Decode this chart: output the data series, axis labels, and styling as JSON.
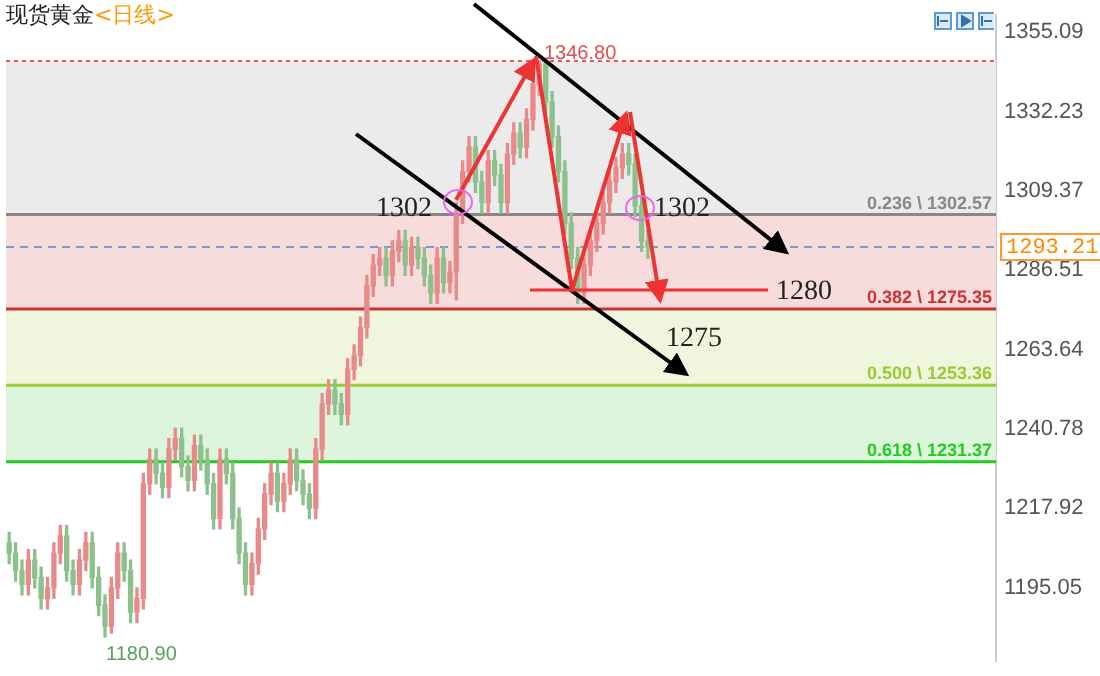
{
  "chart_data": {
    "type": "candlestick",
    "title": "现货黄金",
    "subtitle": "<日线>",
    "categories": [
      null,
      null,
      null,
      null,
      null,
      null,
      null,
      null,
      null,
      null,
      null,
      null,
      null,
      null,
      null,
      null,
      null,
      null,
      null,
      null,
      null,
      null,
      null,
      null,
      null,
      null,
      null,
      null,
      null,
      null,
      null,
      null,
      null,
      null,
      null,
      null,
      null,
      null,
      null,
      null,
      null,
      null,
      null,
      null,
      null,
      null,
      null,
      null,
      null,
      null,
      null,
      null,
      null,
      null,
      null,
      null,
      null,
      null,
      null,
      null,
      null,
      null,
      null,
      null,
      null,
      null,
      null,
      null,
      null,
      null,
      null,
      null,
      null,
      null,
      null,
      null,
      null,
      null,
      null,
      null,
      null,
      null,
      null,
      null,
      null,
      null,
      null,
      null,
      null,
      null,
      null,
      null,
      null,
      null,
      null,
      null,
      null,
      null,
      null,
      null,
      null,
      null,
      null,
      null,
      null,
      null,
      null,
      null,
      null,
      null,
      null,
      null,
      null,
      null,
      null,
      null,
      null,
      null,
      null,
      null,
      null,
      null,
      null,
      null,
      null,
      null,
      null,
      null,
      null,
      null,
      null,
      null,
      null,
      null,
      null,
      null,
      null,
      null,
      null,
      null,
      null,
      null,
      null,
      null,
      null,
      null,
      null,
      null,
      null,
      null,
      null,
      null,
      null,
      null,
      null
    ],
    "ohlc": [
      [
        1208,
        1211,
        1202,
        1205
      ],
      [
        1205,
        1208,
        1197,
        1200
      ],
      [
        1200,
        1203,
        1193,
        1196
      ],
      [
        1196,
        1206,
        1193,
        1203
      ],
      [
        1203,
        1206,
        1195,
        1198
      ],
      [
        1198,
        1201,
        1189,
        1192
      ],
      [
        1192,
        1198,
        1189,
        1195
      ],
      [
        1195,
        1208,
        1192,
        1205
      ],
      [
        1205,
        1213,
        1202,
        1210
      ],
      [
        1210,
        1213,
        1197,
        1200
      ],
      [
        1200,
        1203,
        1193,
        1196
      ],
      [
        1196,
        1206,
        1193,
        1203
      ],
      [
        1203,
        1211,
        1200,
        1208
      ],
      [
        1208,
        1211,
        1195,
        1198
      ],
      [
        1198,
        1201,
        1187,
        1190
      ],
      [
        1190,
        1193,
        1180.9,
        1184
      ],
      [
        1184,
        1198,
        1182,
        1195
      ],
      [
        1195,
        1208,
        1192,
        1205
      ],
      [
        1205,
        1208,
        1197,
        1200
      ],
      [
        1200,
        1203,
        1185,
        1188
      ],
      [
        1188,
        1195,
        1185,
        1192
      ],
      [
        1192,
        1228,
        1189,
        1225
      ],
      [
        1225,
        1235,
        1222,
        1232
      ],
      [
        1232,
        1235,
        1225,
        1228
      ],
      [
        1228,
        1231,
        1221,
        1224
      ],
      [
        1224,
        1238,
        1221,
        1235
      ],
      [
        1235,
        1241,
        1232,
        1238
      ],
      [
        1238,
        1241,
        1227,
        1230
      ],
      [
        1230,
        1233,
        1223,
        1226
      ],
      [
        1226,
        1239,
        1223,
        1236
      ],
      [
        1236,
        1239,
        1229,
        1232
      ],
      [
        1232,
        1235,
        1222,
        1225
      ],
      [
        1225,
        1228,
        1212,
        1215
      ],
      [
        1215,
        1235,
        1212,
        1232
      ],
      [
        1232,
        1235,
        1225,
        1228
      ],
      [
        1228,
        1231,
        1212,
        1215
      ],
      [
        1215,
        1218,
        1202,
        1205
      ],
      [
        1205,
        1208,
        1193,
        1196
      ],
      [
        1196,
        1205,
        1193,
        1202
      ],
      [
        1202,
        1215,
        1199,
        1212
      ],
      [
        1212,
        1225,
        1209,
        1222
      ],
      [
        1222,
        1231,
        1219,
        1228
      ],
      [
        1228,
        1231,
        1217,
        1220
      ],
      [
        1220,
        1228,
        1217,
        1225
      ],
      [
        1225,
        1235,
        1222,
        1232
      ],
      [
        1232,
        1235,
        1223,
        1226
      ],
      [
        1226,
        1229,
        1219,
        1222
      ],
      [
        1222,
        1225,
        1215,
        1218
      ],
      [
        1218,
        1238,
        1215,
        1235
      ],
      [
        1235,
        1251,
        1232,
        1248
      ],
      [
        1248,
        1255,
        1245,
        1252
      ],
      [
        1252,
        1255,
        1245,
        1248
      ],
      [
        1248,
        1251,
        1242,
        1245
      ],
      [
        1245,
        1261,
        1242,
        1258
      ],
      [
        1258,
        1265,
        1255,
        1262
      ],
      [
        1262,
        1273,
        1259,
        1270
      ],
      [
        1270,
        1285,
        1267,
        1282
      ],
      [
        1282,
        1291,
        1279,
        1288
      ],
      [
        1288,
        1293,
        1285,
        1290
      ],
      [
        1290,
        1293,
        1282,
        1285
      ],
      [
        1285,
        1295,
        1282,
        1292
      ],
      [
        1292,
        1298,
        1289,
        1295
      ],
      [
        1295,
        1298,
        1285,
        1288
      ],
      [
        1288,
        1296,
        1285,
        1293
      ],
      [
        1293,
        1296,
        1287,
        1290
      ],
      [
        1290,
        1293,
        1282,
        1285
      ],
      [
        1285,
        1288,
        1277,
        1280
      ],
      [
        1280,
        1293,
        1277,
        1290
      ],
      [
        1290,
        1293,
        1280,
        1283
      ],
      [
        1283,
        1289,
        1280,
        1286
      ],
      [
        1286,
        1306,
        1278,
        1303
      ],
      [
        1303,
        1318,
        1300,
        1315
      ],
      [
        1315,
        1325,
        1312,
        1322
      ],
      [
        1322,
        1325,
        1309,
        1312
      ],
      [
        1312,
        1315,
        1303,
        1306
      ],
      [
        1306,
        1321,
        1303,
        1318
      ],
      [
        1318,
        1321,
        1311,
        1314
      ],
      [
        1314,
        1317,
        1303,
        1306
      ],
      [
        1306,
        1323,
        1303,
        1320
      ],
      [
        1320,
        1329,
        1317,
        1326
      ],
      [
        1326,
        1329,
        1319,
        1322
      ],
      [
        1322,
        1333,
        1319,
        1330
      ],
      [
        1330,
        1343,
        1327,
        1340
      ],
      [
        1340,
        1346.8,
        1337,
        1346
      ],
      [
        1346,
        1346.5,
        1332,
        1335
      ],
      [
        1335,
        1338,
        1322,
        1325
      ],
      [
        1325,
        1328,
        1312,
        1315
      ],
      [
        1315,
        1318,
        1297,
        1300
      ],
      [
        1300,
        1303,
        1287,
        1290
      ],
      [
        1290,
        1293,
        1277,
        1280
      ],
      [
        1280,
        1291,
        1277,
        1288
      ],
      [
        1288,
        1298,
        1285,
        1295
      ],
      [
        1295,
        1303,
        1292,
        1300
      ],
      [
        1300,
        1309,
        1297,
        1306
      ],
      [
        1306,
        1315,
        1303,
        1312
      ],
      [
        1312,
        1319,
        1309,
        1316
      ],
      [
        1316,
        1323,
        1313,
        1320
      ],
      [
        1320,
        1323,
        1314,
        1317
      ],
      [
        1317,
        1320,
        1302,
        1305
      ],
      [
        1305,
        1308,
        1292,
        1295
      ],
      [
        1295,
        1298,
        1290,
        1293.21
      ],
      null,
      null,
      null,
      null,
      null,
      null,
      null,
      null,
      null,
      null,
      null,
      null,
      null,
      null,
      null,
      null,
      null,
      null,
      null,
      null,
      null,
      null,
      null,
      null,
      null,
      null,
      null,
      null,
      null,
      null,
      null,
      null,
      null,
      null,
      null,
      null,
      null,
      null,
      null,
      null,
      null,
      null,
      null,
      null,
      null,
      null,
      null,
      null,
      null,
      null,
      null,
      null,
      null,
      null
    ],
    "colors": [
      "#8cc08c",
      "#8cc08c",
      "#8cc08c",
      "#e88a8a",
      "#8cc08c",
      "#8cc08c",
      "#e88a8a",
      "#e88a8a",
      "#e88a8a",
      "#8cc08c",
      "#8cc08c",
      "#e88a8a",
      "#e88a8a",
      "#8cc08c",
      "#8cc08c",
      "#8cc08c",
      "#e88a8a",
      "#e88a8a",
      "#8cc08c",
      "#8cc08c",
      "#e88a8a",
      "#e88a8a",
      "#e88a8a",
      "#8cc08c",
      "#8cc08c",
      "#e88a8a",
      "#e88a8a",
      "#8cc08c",
      "#8cc08c",
      "#e88a8a",
      "#8cc08c",
      "#8cc08c",
      "#8cc08c",
      "#e88a8a",
      "#8cc08c",
      "#8cc08c",
      "#8cc08c",
      "#8cc08c",
      "#e88a8a",
      "#e88a8a",
      "#e88a8a",
      "#e88a8a",
      "#8cc08c",
      "#e88a8a",
      "#e88a8a",
      "#8cc08c",
      "#8cc08c",
      "#8cc08c",
      "#e88a8a",
      "#e88a8a",
      "#e88a8a",
      "#8cc08c",
      "#8cc08c",
      "#e88a8a",
      "#e88a8a",
      "#e88a8a",
      "#e88a8a",
      "#e88a8a",
      "#e88a8a",
      "#8cc08c",
      "#e88a8a",
      "#e88a8a",
      "#8cc08c",
      "#e88a8a",
      "#8cc08c",
      "#8cc08c",
      "#8cc08c",
      "#e88a8a",
      "#8cc08c",
      "#e88a8a",
      "#e88a8a",
      "#e88a8a",
      "#e88a8a",
      "#8cc08c",
      "#8cc08c",
      "#e88a8a",
      "#8cc08c",
      "#8cc08c",
      "#e88a8a",
      "#e88a8a",
      "#8cc08c",
      "#e88a8a",
      "#e88a8a",
      "#e88a8a",
      "#8cc08c",
      "#8cc08c",
      "#8cc08c",
      "#8cc08c",
      "#8cc08c",
      "#8cc08c",
      "#e88a8a",
      "#e88a8a",
      "#e88a8a",
      "#e88a8a",
      "#e88a8a",
      "#e88a8a",
      "#e88a8a",
      "#8cc08c",
      "#8cc08c",
      "#8cc08c",
      "#8cc08c",
      null,
      null,
      null,
      null,
      null,
      null,
      null,
      null,
      null,
      null,
      null,
      null,
      null,
      null,
      null,
      null,
      null,
      null,
      null,
      null,
      null,
      null,
      null,
      null,
      null,
      null,
      null,
      null,
      null,
      null,
      null,
      null,
      null,
      null,
      null,
      null,
      null,
      null,
      null,
      null,
      null,
      null,
      null,
      null,
      null,
      null,
      null,
      null,
      null,
      null,
      null,
      null,
      null,
      null
    ],
    "ylim": [
      1174,
      1360
    ],
    "yticks": [
      1355.09,
      1332.23,
      1309.37,
      1286.51,
      1263.64,
      1240.78,
      1217.92,
      1195.05
    ],
    "tick_labels": "y",
    "bands": [
      {
        "axis": "y",
        "from": 1302.57,
        "to": 1346.8,
        "color": "#ebebeb"
      },
      {
        "axis": "y",
        "from": 1275.35,
        "to": 1302.57,
        "color": "#f8dcdc"
      },
      {
        "axis": "y",
        "from": 1253.36,
        "to": 1275.35,
        "color": "#f0f6de"
      },
      {
        "axis": "y",
        "from": 1231.37,
        "to": 1253.36,
        "color": "#dcf5dc"
      }
    ],
    "ref_lines": [
      {
        "axis": "y",
        "value": 1302.57,
        "label": "0.236 \\ 1302.57",
        "color": "#888888",
        "line_style": "solid"
      },
      {
        "axis": "y",
        "value": 1275.35,
        "label": "0.382 \\ 1275.35",
        "color": "#cc3333",
        "line_style": "solid"
      },
      {
        "axis": "y",
        "value": 1253.36,
        "label": "0.500 \\ 1253.36",
        "color": "#99cc33",
        "line_style": "solid"
      },
      {
        "axis": "y",
        "value": 1231.37,
        "label": "0.618 \\ 1231.37",
        "color": "#22cc22",
        "line_style": "solid"
      },
      {
        "axis": "y",
        "value": 1346.8,
        "color": "#ee5555",
        "line_style": "dotted"
      },
      {
        "axis": "y",
        "value": 1293.21,
        "label": "1293.21",
        "color": "#7799dd",
        "line_style": "dashed"
      }
    ],
    "annotations": [
      {
        "text": "1346.80",
        "y": 1346.8
      },
      "1180.90",
      {
        "text": "1302",
        "y": 1302
      },
      {
        "text": "1302",
        "y": 1302
      },
      "1280",
      {
        "text": "1275",
        "y": 1275
      }
    ]
  }
}
